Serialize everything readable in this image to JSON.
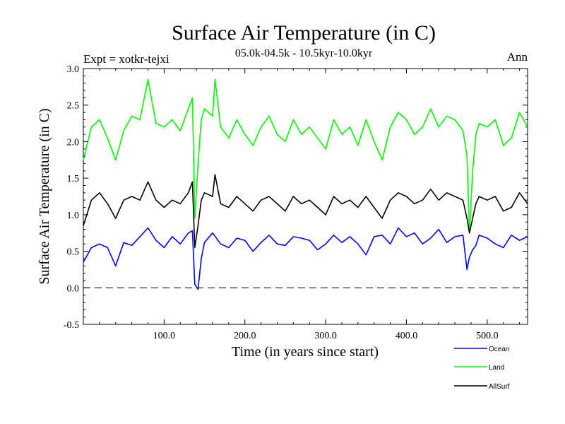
{
  "chart_data": {
    "type": "line",
    "title": "Surface Air Temperature (in C)",
    "subtitle": "05.0k-04.5k - 10.5kyr-10.0kyr",
    "expt_label": "Expt = xotkr-tejxi",
    "season_label": "Ann",
    "xlabel": "Time (in years since start)",
    "ylabel": "Surface Air Temperature (in C)",
    "xlim": [
      0,
      550
    ],
    "ylim": [
      -0.5,
      3.0
    ],
    "xticks": [
      100,
      200,
      300,
      400,
      500
    ],
    "xtick_labels": [
      "100.0",
      "200.0",
      "300.0",
      "400.0",
      "500.0"
    ],
    "yticks": [
      -0.5,
      0.0,
      0.5,
      1.0,
      1.5,
      2.0,
      2.5,
      3.0
    ],
    "ytick_labels": [
      "-0.5",
      "0.0",
      "0.5",
      "1.0",
      "1.5",
      "2.0",
      "2.5",
      "3.0"
    ],
    "reference_line": 0.0,
    "legend_position": "bottom-right, below plot",
    "series": [
      {
        "name": "Ocean",
        "color": "#0000ff",
        "x": [
          0,
          10,
          20,
          30,
          40,
          50,
          60,
          70,
          80,
          90,
          100,
          110,
          120,
          130,
          135,
          138,
          142,
          146,
          150,
          160,
          170,
          180,
          190,
          200,
          210,
          220,
          230,
          240,
          250,
          260,
          270,
          280,
          290,
          300,
          310,
          320,
          330,
          340,
          350,
          360,
          370,
          380,
          390,
          400,
          410,
          420,
          430,
          440,
          450,
          460,
          470,
          475,
          478,
          482,
          486,
          490,
          500,
          510,
          520,
          530,
          540,
          550
        ],
        "values": [
          0.35,
          0.55,
          0.6,
          0.55,
          0.3,
          0.62,
          0.58,
          0.7,
          0.82,
          0.65,
          0.55,
          0.7,
          0.6,
          0.75,
          0.78,
          0.05,
          -0.02,
          0.4,
          0.62,
          0.75,
          0.6,
          0.55,
          0.68,
          0.65,
          0.5,
          0.62,
          0.72,
          0.6,
          0.58,
          0.7,
          0.68,
          0.65,
          0.52,
          0.6,
          0.72,
          0.62,
          0.7,
          0.6,
          0.45,
          0.7,
          0.72,
          0.6,
          0.82,
          0.7,
          0.75,
          0.6,
          0.68,
          0.8,
          0.62,
          0.7,
          0.72,
          0.25,
          0.42,
          0.52,
          0.58,
          0.72,
          0.68,
          0.6,
          0.55,
          0.72,
          0.65,
          0.7
        ]
      },
      {
        "name": "Land",
        "color": "#00ff00",
        "x": [
          0,
          10,
          20,
          30,
          40,
          50,
          60,
          70,
          80,
          90,
          100,
          110,
          120,
          130,
          135,
          138,
          142,
          146,
          150,
          160,
          163,
          170,
          180,
          190,
          200,
          210,
          220,
          230,
          240,
          250,
          260,
          270,
          280,
          290,
          300,
          310,
          320,
          330,
          340,
          350,
          360,
          370,
          380,
          390,
          400,
          410,
          420,
          430,
          440,
          450,
          460,
          470,
          475,
          478,
          482,
          486,
          490,
          500,
          510,
          520,
          530,
          540,
          550
        ],
        "values": [
          1.75,
          2.2,
          2.3,
          2.05,
          1.75,
          2.15,
          2.35,
          2.3,
          2.85,
          2.25,
          2.2,
          2.3,
          2.15,
          2.45,
          2.6,
          0.95,
          1.7,
          2.3,
          2.45,
          2.35,
          2.85,
          2.2,
          2.05,
          2.3,
          2.1,
          1.95,
          2.2,
          2.35,
          2.1,
          2.0,
          2.3,
          2.1,
          2.2,
          2.05,
          1.9,
          2.3,
          2.1,
          2.2,
          1.95,
          2.3,
          2.0,
          1.75,
          2.2,
          2.4,
          2.3,
          2.1,
          2.2,
          2.45,
          2.2,
          2.35,
          2.3,
          2.15,
          1.8,
          0.75,
          1.6,
          2.1,
          2.25,
          2.2,
          2.3,
          1.95,
          2.05,
          2.4,
          2.2
        ]
      },
      {
        "name": "AllSurf",
        "color": "#000000",
        "x": [
          0,
          10,
          20,
          30,
          40,
          50,
          60,
          70,
          80,
          90,
          100,
          110,
          120,
          130,
          135,
          138,
          142,
          146,
          150,
          160,
          163,
          170,
          180,
          190,
          200,
          210,
          220,
          230,
          240,
          250,
          260,
          270,
          280,
          290,
          300,
          310,
          320,
          330,
          340,
          350,
          360,
          370,
          380,
          390,
          400,
          410,
          420,
          430,
          440,
          450,
          460,
          470,
          475,
          478,
          482,
          486,
          490,
          500,
          510,
          520,
          530,
          540,
          550
        ],
        "values": [
          0.85,
          1.2,
          1.3,
          1.15,
          0.95,
          1.2,
          1.25,
          1.2,
          1.45,
          1.2,
          1.1,
          1.2,
          1.15,
          1.3,
          1.45,
          0.55,
          0.85,
          1.2,
          1.3,
          1.25,
          1.55,
          1.15,
          1.1,
          1.25,
          1.15,
          1.05,
          1.2,
          1.25,
          1.15,
          1.05,
          1.25,
          1.15,
          1.2,
          1.1,
          1.0,
          1.25,
          1.15,
          1.2,
          1.1,
          1.25,
          1.1,
          0.95,
          1.2,
          1.3,
          1.25,
          1.15,
          1.2,
          1.35,
          1.2,
          1.3,
          1.25,
          1.2,
          0.95,
          0.75,
          0.95,
          1.15,
          1.25,
          1.2,
          1.25,
          1.05,
          1.1,
          1.3,
          1.15
        ]
      }
    ]
  }
}
